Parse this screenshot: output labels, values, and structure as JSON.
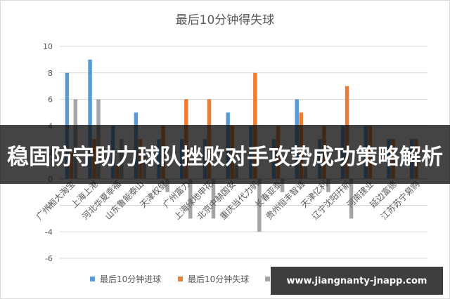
{
  "chart_data": {
    "type": "bar",
    "title": "最后10分钟得失球",
    "categories": [
      "广州恒大淘宝",
      "上海上港",
      "河北华夏幸福",
      "山东鲁能泰山",
      "天津权健",
      "广州富力",
      "上海绿地申花",
      "北京中赫国安",
      "重庆当代力帆",
      "长春亚泰",
      "贵州恒丰智诚",
      "天津亿利",
      "辽宁沈阳开新",
      "河南建业",
      "延边富德",
      "江苏苏宁易购"
    ],
    "series": [
      {
        "name": "最后10分钟进球",
        "color": "#5b9bd5",
        "values": [
          8,
          9,
          4,
          5,
          3,
          3,
          3,
          5,
          4,
          3,
          6,
          3,
          4,
          4,
          3,
          3
        ]
      },
      {
        "name": "最后10分钟失球",
        "color": "#ed7d31",
        "values": [
          2,
          3,
          1,
          3,
          4,
          6,
          6,
          4,
          8,
          4,
          5,
          4,
          7,
          4,
          3,
          3
        ]
      },
      {
        "name": "",
        "color": "#a5a5a5",
        "values": [
          6,
          6,
          3,
          2,
          -1,
          -3,
          -3,
          1,
          -4,
          -1,
          1,
          -1,
          -3,
          0,
          0,
          0
        ]
      }
    ],
    "ylim": [
      -6,
      10
    ],
    "yticks": [
      -6,
      -4,
      -2,
      0,
      2,
      4,
      6,
      8,
      10
    ],
    "grid": true,
    "legend_position": "bottom"
  },
  "overlay": {
    "banner_text": "稳固防守助力球队挫败对手攻势成功策略解析",
    "watermark_text": "www.jiangnanty-jnapp.com"
  }
}
